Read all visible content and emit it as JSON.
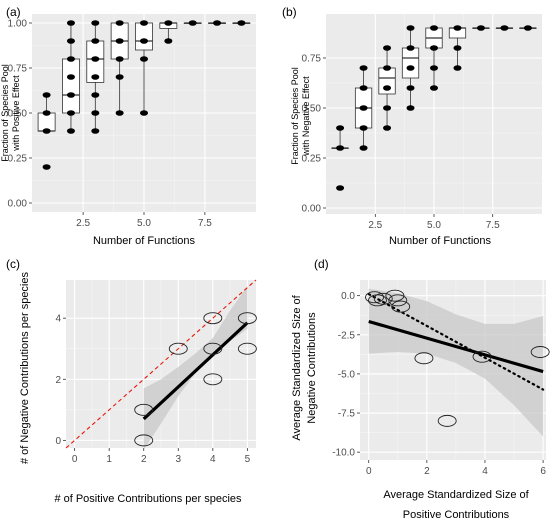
{
  "chart_data": [
    {
      "panel": "(a)",
      "type": "box",
      "xlabel": "Number of Functions",
      "ylabel_lines": [
        "Fraction of Species Pool",
        "with Positive Effect"
      ],
      "xlim": [
        0.4,
        9.6
      ],
      "ylim": [
        -0.05,
        1.05
      ],
      "xticks": [
        2.5,
        5.0,
        7.5
      ],
      "yticks": [
        0.0,
        0.25,
        0.5,
        0.75,
        1.0
      ],
      "xtick_labels": [
        "2.5",
        "5.0",
        "7.5"
      ],
      "ytick_labels": [
        "0.00",
        "0.25",
        "0.50",
        "0.75",
        "1.00"
      ],
      "boxes": [
        {
          "x": 1,
          "q1": 0.4,
          "median": 0.4,
          "q3": 0.5,
          "lo": 0.4,
          "hi": 0.6
        },
        {
          "x": 2,
          "q1": 0.5,
          "median": 0.6,
          "q3": 0.8,
          "lo": 0.4,
          "hi": 1.0
        },
        {
          "x": 3,
          "q1": 0.67,
          "median": 0.8,
          "q3": 0.9,
          "lo": 0.4,
          "hi": 1.0
        },
        {
          "x": 4,
          "q1": 0.8,
          "median": 0.9,
          "q3": 1.0,
          "lo": 0.5,
          "hi": 1.0
        },
        {
          "x": 5,
          "q1": 0.85,
          "median": 0.9,
          "q3": 1.0,
          "lo": 0.5,
          "hi": 1.0
        },
        {
          "x": 6,
          "q1": 0.97,
          "median": 1.0,
          "q3": 1.0,
          "lo": 0.9,
          "hi": 1.0
        },
        {
          "x": 7,
          "q1": 1.0,
          "median": 1.0,
          "q3": 1.0,
          "lo": 1.0,
          "hi": 1.0
        },
        {
          "x": 8,
          "q1": 1.0,
          "median": 1.0,
          "q3": 1.0,
          "lo": 1.0,
          "hi": 1.0
        },
        {
          "x": 9,
          "q1": 1.0,
          "median": 1.0,
          "q3": 1.0,
          "lo": 1.0,
          "hi": 1.0
        }
      ],
      "points": [
        [
          1,
          0.2
        ],
        [
          1,
          0.4
        ],
        [
          1,
          0.5
        ],
        [
          1,
          0.6
        ],
        [
          2,
          0.4
        ],
        [
          2,
          0.5
        ],
        [
          2,
          0.6
        ],
        [
          2,
          0.7
        ],
        [
          2,
          0.8
        ],
        [
          2,
          0.9
        ],
        [
          2,
          1.0
        ],
        [
          3,
          0.4
        ],
        [
          3,
          0.5
        ],
        [
          3,
          0.6
        ],
        [
          3,
          0.7
        ],
        [
          3,
          0.8
        ],
        [
          3,
          0.9
        ],
        [
          3,
          1.0
        ],
        [
          4,
          0.5
        ],
        [
          4,
          0.7
        ],
        [
          4,
          0.8
        ],
        [
          4,
          0.9
        ],
        [
          4,
          1.0
        ],
        [
          5,
          0.5
        ],
        [
          5,
          0.8
        ],
        [
          5,
          0.9
        ],
        [
          5,
          1.0
        ],
        [
          6,
          0.9
        ],
        [
          6,
          1.0
        ],
        [
          7,
          1.0
        ],
        [
          8,
          1.0
        ],
        [
          9,
          1.0
        ]
      ]
    },
    {
      "panel": "(b)",
      "type": "box",
      "xlabel": "Number of Functions",
      "ylabel_lines": [
        "Fraction of Species Pool",
        "with Negative Effect"
      ],
      "xlim": [
        0.4,
        9.6
      ],
      "ylim": [
        -0.03,
        0.97
      ],
      "xticks": [
        2.5,
        5.0,
        7.5
      ],
      "yticks": [
        0.0,
        0.25,
        0.5,
        0.75
      ],
      "xtick_labels": [
        "2.5",
        "5.0",
        "7.5"
      ],
      "ytick_labels": [
        "0.00",
        "0.25",
        "0.50",
        "0.75"
      ],
      "boxes": [
        {
          "x": 1,
          "q1": 0.3,
          "median": 0.3,
          "q3": 0.3,
          "lo": 0.3,
          "hi": 0.4
        },
        {
          "x": 2,
          "q1": 0.4,
          "median": 0.5,
          "q3": 0.6,
          "lo": 0.3,
          "hi": 0.7
        },
        {
          "x": 3,
          "q1": 0.57,
          "median": 0.65,
          "q3": 0.7,
          "lo": 0.4,
          "hi": 0.8
        },
        {
          "x": 4,
          "q1": 0.65,
          "median": 0.75,
          "q3": 0.8,
          "lo": 0.5,
          "hi": 0.9
        },
        {
          "x": 5,
          "q1": 0.8,
          "median": 0.85,
          "q3": 0.9,
          "lo": 0.6,
          "hi": 0.9
        },
        {
          "x": 6,
          "q1": 0.85,
          "median": 0.9,
          "q3": 0.9,
          "lo": 0.7,
          "hi": 0.9
        },
        {
          "x": 7,
          "q1": 0.9,
          "median": 0.9,
          "q3": 0.9,
          "lo": 0.9,
          "hi": 0.9
        },
        {
          "x": 8,
          "q1": 0.9,
          "median": 0.9,
          "q3": 0.9,
          "lo": 0.9,
          "hi": 0.9
        },
        {
          "x": 9,
          "q1": 0.9,
          "median": 0.9,
          "q3": 0.9,
          "lo": 0.9,
          "hi": 0.9
        }
      ],
      "points": [
        [
          1,
          0.1
        ],
        [
          1,
          0.3
        ],
        [
          1,
          0.4
        ],
        [
          2,
          0.3
        ],
        [
          2,
          0.4
        ],
        [
          2,
          0.5
        ],
        [
          2,
          0.6
        ],
        [
          2,
          0.7
        ],
        [
          3,
          0.4
        ],
        [
          3,
          0.5
        ],
        [
          3,
          0.6
        ],
        [
          3,
          0.7
        ],
        [
          3,
          0.8
        ],
        [
          4,
          0.5
        ],
        [
          4,
          0.6
        ],
        [
          4,
          0.7
        ],
        [
          4,
          0.8
        ],
        [
          4,
          0.9
        ],
        [
          5,
          0.6
        ],
        [
          5,
          0.7
        ],
        [
          5,
          0.8
        ],
        [
          5,
          0.9
        ],
        [
          6,
          0.7
        ],
        [
          6,
          0.8
        ],
        [
          6,
          0.9
        ],
        [
          7,
          0.9
        ],
        [
          8,
          0.9
        ],
        [
          9,
          0.9
        ]
      ]
    },
    {
      "panel": "(c)",
      "type": "scatter",
      "xlabel": "# of Positive Contributions per species",
      "ylabel": "# of Negative Contributions per species",
      "xlim": [
        -0.25,
        5.25
      ],
      "ylim": [
        -0.25,
        5.25
      ],
      "xticks": [
        0,
        1,
        2,
        3,
        4,
        5
      ],
      "yticks": [
        0,
        2,
        4
      ],
      "xtick_labels": [
        "0",
        "1",
        "2",
        "3",
        "4",
        "5"
      ],
      "ytick_labels": [
        "0",
        "2",
        "4"
      ],
      "points": [
        [
          2,
          0
        ],
        [
          2,
          1
        ],
        [
          3,
          3
        ],
        [
          4,
          4
        ],
        [
          4,
          3
        ],
        [
          4,
          2
        ],
        [
          5,
          4
        ],
        [
          5,
          3
        ]
      ],
      "fit": {
        "x0": 2,
        "y0": 0.7,
        "x1": 5,
        "y1": 3.85
      },
      "ci": {
        "x": [
          2,
          2.5,
          3,
          3.5,
          4,
          4.5,
          5
        ],
        "lo": [
          -0.3,
          0.55,
          1.45,
          2.2,
          2.85,
          3.25,
          3.65
        ],
        "hi": [
          1.7,
          2.0,
          2.4,
          2.85,
          3.35,
          4.25,
          5.05
        ]
      },
      "ref_line": {
        "x0": -0.25,
        "y0": -0.25,
        "x1": 5.25,
        "y1": 5.25
      }
    },
    {
      "panel": "(d)",
      "type": "scatter",
      "xlabel_lines": [
        "Average Standardized Size of",
        "Positive Contributions"
      ],
      "ylabel_lines": [
        "Average Standardized Size of",
        "Negative Contributions"
      ],
      "xlim": [
        -0.3,
        6.1
      ],
      "ylim": [
        -10.5,
        1.0
      ],
      "xticks": [
        0,
        2,
        4,
        6
      ],
      "yticks": [
        0,
        -2.5,
        -5.0,
        -7.5,
        -10.0
      ],
      "xtick_labels": [
        "0",
        "2",
        "4",
        "6"
      ],
      "ytick_labels": [
        "0.0",
        "-2.5",
        "-5.0",
        "-7.5",
        "-10.0"
      ],
      "points": [
        [
          0.2,
          -0.1
        ],
        [
          0.3,
          -0.3
        ],
        [
          0.5,
          -0.2
        ],
        [
          0.9,
          0.0
        ],
        [
          1.0,
          -0.3
        ],
        [
          1.1,
          -0.7
        ],
        [
          1.9,
          -4.0
        ],
        [
          2.7,
          -8.0
        ],
        [
          3.9,
          -3.9
        ],
        [
          5.9,
          -3.6
        ]
      ],
      "fit": {
        "x0": 0,
        "y0": -1.65,
        "x1": 6.0,
        "y1": -4.85
      },
      "dotted_line": {
        "x0": 0,
        "y0": 0.1,
        "x1": 6.0,
        "y1": -6.0
      },
      "ci": {
        "x": [
          0,
          1,
          2,
          3,
          4,
          5,
          6
        ],
        "lo": [
          -3.7,
          -3.6,
          -3.7,
          -4.3,
          -5.3,
          -7.0,
          -9.0
        ],
        "hi": [
          0.45,
          0.15,
          -0.35,
          -1.2,
          -1.8,
          -1.8,
          -1.3
        ]
      }
    }
  ]
}
